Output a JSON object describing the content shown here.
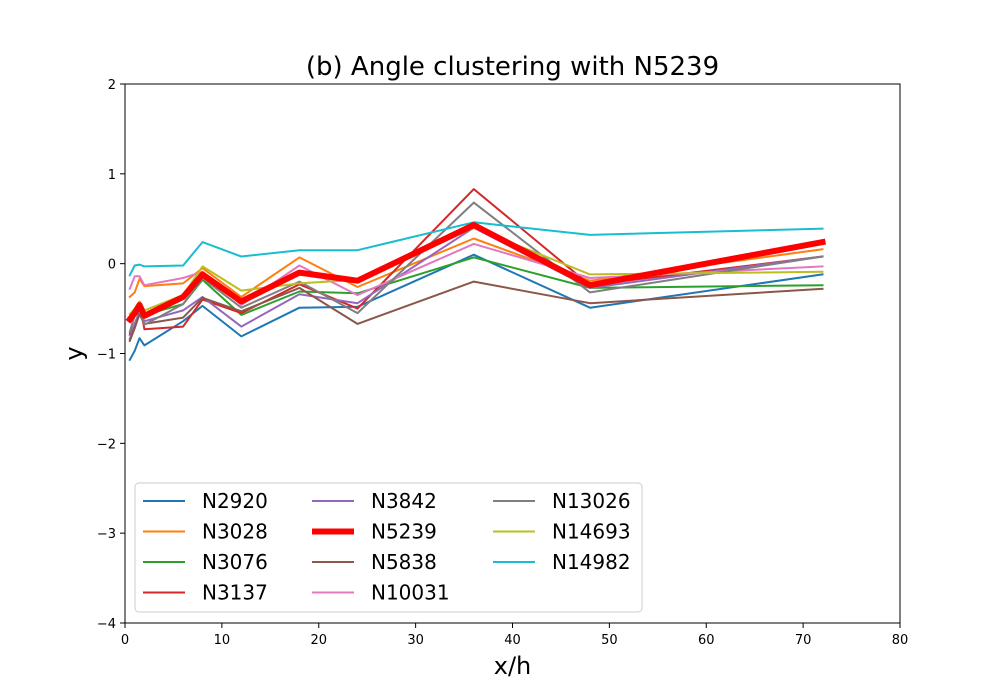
{
  "chart_data": {
    "type": "line",
    "title": "(b) Angle clustering with N5239",
    "xlabel": "x/h",
    "ylabel": "y",
    "xlim": [
      0,
      80
    ],
    "ylim": [
      -4,
      2
    ],
    "xticks": [
      0,
      10,
      20,
      30,
      40,
      50,
      60,
      70,
      80
    ],
    "yticks": [
      -4,
      -3,
      -2,
      -1,
      0,
      1,
      2
    ],
    "grid": false,
    "legend_position": "lower-left",
    "legend_columns": 3,
    "x": [
      0.5,
      1.0,
      1.5,
      2.0,
      6.0,
      8.0,
      12.0,
      18.0,
      24.0,
      36.0,
      48.0,
      72.0
    ],
    "series": [
      {
        "name": "N2920",
        "color": "#1f77b4",
        "width": 2,
        "values": [
          -1.07,
          -0.97,
          -0.83,
          -0.91,
          -0.64,
          -0.47,
          -0.81,
          -0.49,
          -0.48,
          0.1,
          -0.49,
          -0.12
        ]
      },
      {
        "name": "N3028",
        "color": "#ff7f0e",
        "width": 2,
        "values": [
          -0.37,
          -0.32,
          -0.17,
          -0.25,
          -0.22,
          -0.05,
          -0.37,
          0.07,
          -0.26,
          0.28,
          -0.19,
          0.16
        ]
      },
      {
        "name": "N3076",
        "color": "#2ca02c",
        "width": 2,
        "values": [
          -0.64,
          -0.56,
          -0.46,
          -0.57,
          -0.45,
          -0.18,
          -0.57,
          -0.31,
          -0.33,
          0.07,
          -0.27,
          -0.24
        ]
      },
      {
        "name": "N3137",
        "color": "#d62728",
        "width": 2,
        "values": [
          -0.79,
          -0.56,
          -0.43,
          -0.73,
          -0.7,
          -0.4,
          -0.55,
          -0.23,
          -0.5,
          0.83,
          -0.24,
          0.08
        ]
      },
      {
        "name": "N3842",
        "color": "#9467bd",
        "width": 2,
        "values": [
          -0.84,
          -0.67,
          -0.53,
          -0.64,
          -0.52,
          -0.37,
          -0.7,
          -0.34,
          -0.44,
          0.4,
          -0.27,
          0.08
        ]
      },
      {
        "name": "N5239",
        "color": "#ff0000",
        "width": 6,
        "values": [
          -0.62,
          -0.55,
          -0.46,
          -0.58,
          -0.37,
          -0.12,
          -0.42,
          -0.1,
          -0.19,
          0.43,
          -0.24,
          0.24
        ]
      },
      {
        "name": "N5838",
        "color": "#8c564b",
        "width": 2,
        "values": [
          -0.86,
          -0.72,
          -0.56,
          -0.67,
          -0.6,
          -0.38,
          -0.53,
          -0.27,
          -0.67,
          -0.2,
          -0.44,
          -0.28
        ]
      },
      {
        "name": "N10031",
        "color": "#e377c2",
        "width": 2,
        "values": [
          -0.28,
          -0.14,
          -0.14,
          -0.24,
          -0.16,
          -0.09,
          -0.46,
          -0.02,
          -0.35,
          0.22,
          -0.16,
          -0.03
        ]
      },
      {
        "name": "N13026",
        "color": "#7f7f7f",
        "width": 2,
        "values": [
          -0.76,
          -0.58,
          -0.48,
          -0.68,
          -0.45,
          -0.16,
          -0.49,
          -0.2,
          -0.55,
          0.68,
          -0.32,
          0.08
        ]
      },
      {
        "name": "N14693",
        "color": "#bcbd22",
        "width": 2,
        "values": [
          -0.56,
          -0.5,
          -0.42,
          -0.52,
          -0.35,
          -0.03,
          -0.3,
          -0.22,
          -0.18,
          0.4,
          -0.12,
          -0.09
        ]
      },
      {
        "name": "N14982",
        "color": "#17becf",
        "width": 2,
        "values": [
          -0.13,
          -0.02,
          -0.01,
          -0.03,
          -0.02,
          0.24,
          0.08,
          0.15,
          0.15,
          0.46,
          0.32,
          0.39
        ]
      }
    ]
  }
}
